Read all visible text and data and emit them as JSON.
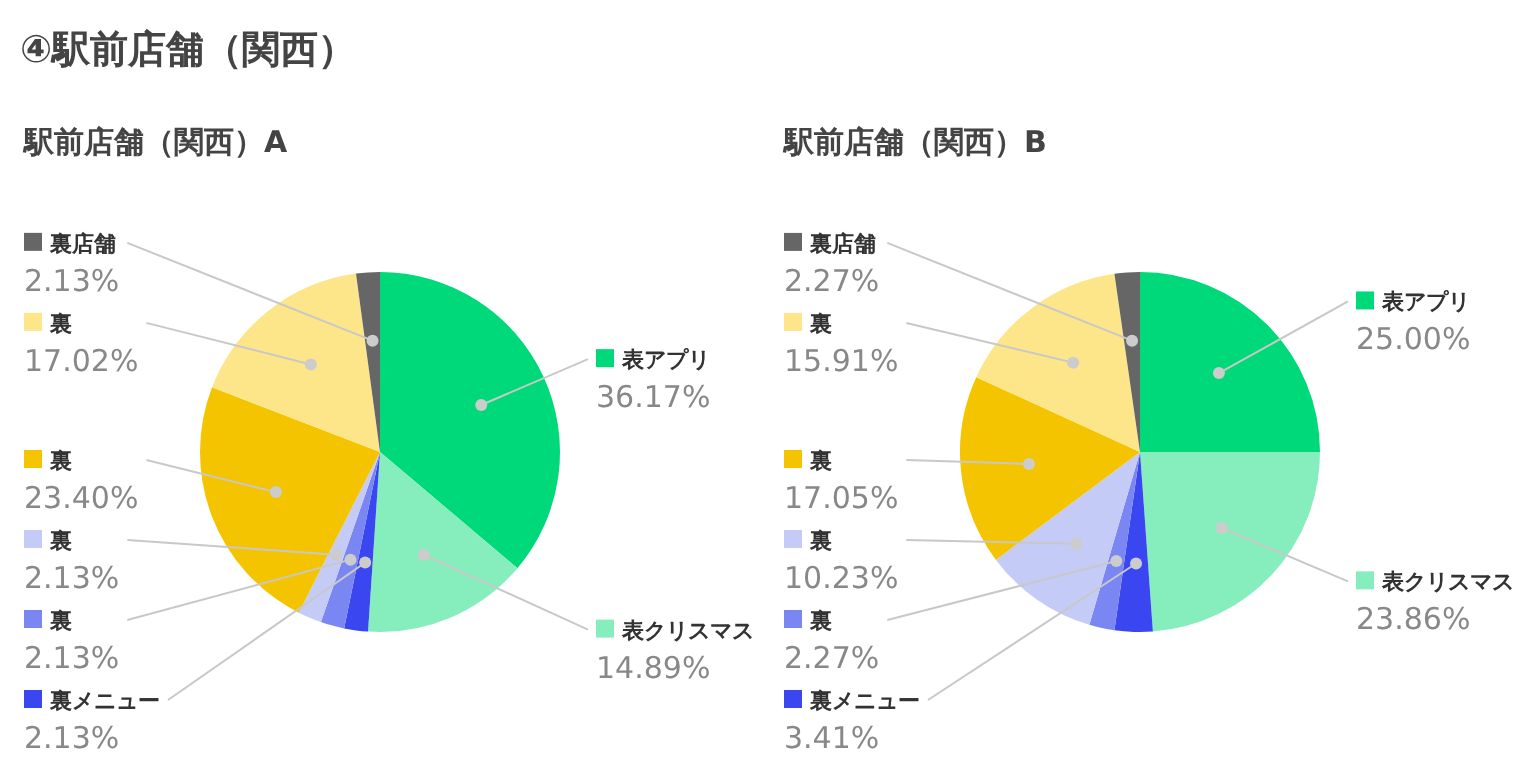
{
  "chart_data": [
    {
      "type": "pie",
      "title": "駅前店舗（関西）A",
      "annotations": [
        "④駅前店舗（関西）"
      ],
      "legend": "left",
      "categories": [
        "表アプリ",
        "表クリスマス",
        "裏メニュー",
        "裏",
        "裏",
        "裏",
        "裏",
        "裏店舗"
      ],
      "values": [
        36.17,
        14.89,
        2.13,
        2.13,
        2.13,
        23.4,
        17.02,
        2.13
      ],
      "value_labels": [
        "36.17%",
        "14.89%",
        "2.13%",
        "2.13%",
        "2.13%",
        "23.40%",
        "17.02%",
        "2.13%"
      ],
      "colors": [
        "#00d97a",
        "#86edbd",
        "#3a46f0",
        "#7a86f2",
        "#c5cbf7",
        "#f5c400",
        "#fde68a",
        "#666666"
      ]
    },
    {
      "type": "pie",
      "title": "駅前店舗（関西）B",
      "legend": "left",
      "categories": [
        "表アプリ",
        "表クリスマス",
        "裏メニュー",
        "裏",
        "裏",
        "裏",
        "裏",
        "裏店舗"
      ],
      "values": [
        25.0,
        23.86,
        3.41,
        2.27,
        10.23,
        17.05,
        15.91,
        2.27
      ],
      "value_labels": [
        "25.00%",
        "23.86%",
        "3.41%",
        "2.27%",
        "10.23%",
        "17.05%",
        "15.91%",
        "2.27%"
      ],
      "colors": [
        "#00d97a",
        "#86edbd",
        "#3a46f0",
        "#7a86f2",
        "#c5cbf7",
        "#f5c400",
        "#fde68a",
        "#666666"
      ]
    }
  ]
}
